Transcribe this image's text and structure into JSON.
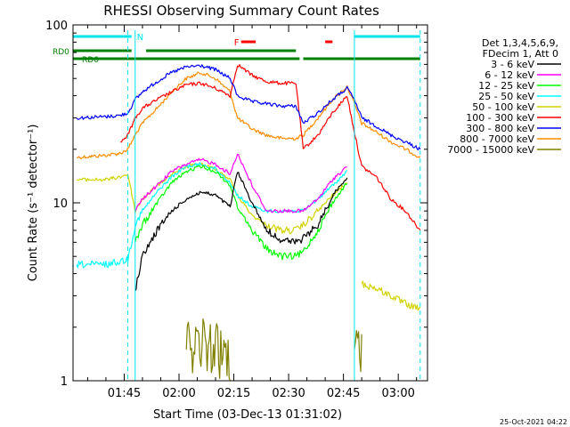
{
  "chart_data": {
    "type": "line",
    "title": "RHESSI Observing Summary Count Rates",
    "xlabel": "Start Time (03-Dec-13 01:31:02)",
    "ylabel": "Count Rate (s⁻¹ detector⁻¹)",
    "y_scale": "log",
    "ylim": [
      1,
      100
    ],
    "xlim": [
      "01:31",
      "03:08"
    ],
    "x_ticks": [
      "01:45",
      "02:00",
      "02:15",
      "02:30",
      "02:45",
      "03:00"
    ],
    "y_ticks": [
      "1",
      "10",
      "100"
    ],
    "grid": false,
    "legend_position": "top-right",
    "legend_header": [
      "Det 1,3,4,5,6,9,",
      "FDecim 1, Att 0"
    ],
    "timestamp": "25-Oct-2021 04:22",
    "flags": [
      {
        "label": "N",
        "color": "#00e5ee",
        "type": "night",
        "intervals": [
          [
            "01:31",
            "01:47"
          ],
          [
            "02:48",
            "03:06"
          ]
        ]
      },
      {
        "label": "F",
        "color": "#ff0000",
        "type": "flare",
        "intervals": [
          [
            "02:17",
            "02:21"
          ],
          [
            "02:40",
            "02:42"
          ]
        ]
      },
      {
        "label": "RD0",
        "color": "#008000",
        "type": "decimation",
        "intervals": [
          [
            "01:31",
            "01:47"
          ],
          [
            "01:51",
            "02:32"
          ]
        ]
      },
      {
        "label": "RD6",
        "color": "#008000",
        "type": "decimation",
        "intervals": [
          [
            "01:31",
            "02:33"
          ],
          [
            "02:34",
            "03:06"
          ]
        ]
      }
    ],
    "night_markers": [
      {
        "time": "01:46",
        "style": "dashed"
      },
      {
        "time": "01:48",
        "style": "solid"
      },
      {
        "time": "02:48",
        "style": "solid"
      },
      {
        "time": "03:06",
        "style": "dashed"
      }
    ],
    "x_times": [
      "01:32",
      "01:40",
      "01:44",
      "01:46",
      "01:48",
      "01:50",
      "01:54",
      "01:58",
      "02:02",
      "02:06",
      "02:10",
      "02:14",
      "02:16",
      "02:20",
      "02:24",
      "02:28",
      "02:32",
      "02:34",
      "02:38",
      "02:42",
      "02:46",
      "02:48",
      "02:50",
      "02:54",
      "02:58",
      "03:02",
      "03:06"
    ],
    "series": [
      {
        "name": "3 - 6 keV",
        "color": "#000000",
        "values": [
          null,
          null,
          null,
          null,
          3.2,
          5.0,
          7.0,
          9.0,
          10.5,
          11.5,
          11.0,
          9.5,
          15.0,
          10.0,
          7.0,
          6.2,
          6.0,
          6.3,
          7.5,
          11.0,
          14.0,
          null,
          null,
          null,
          null,
          null,
          null
        ]
      },
      {
        "name": "6 - 12 keV",
        "color": "#ff00ff",
        "values": [
          null,
          null,
          null,
          null,
          9.0,
          10.5,
          12.5,
          15.0,
          16.5,
          17.5,
          16.5,
          14.5,
          19.0,
          12.5,
          9.0,
          9.0,
          9.0,
          9.0,
          10.5,
          13.5,
          16.0,
          null,
          null,
          null,
          null,
          null,
          null
        ]
      },
      {
        "name": "12 - 25 keV",
        "color": "#00ff00",
        "values": [
          null,
          null,
          null,
          null,
          6.0,
          7.5,
          10.0,
          13.0,
          15.0,
          16.0,
          15.0,
          12.5,
          9.5,
          7.0,
          5.5,
          5.0,
          5.0,
          5.3,
          7.0,
          10.0,
          13.0,
          null,
          null,
          null,
          null,
          null,
          null
        ]
      },
      {
        "name": "25 - 50 keV",
        "color": "#00ffff",
        "values": [
          4.5,
          4.5,
          4.7,
          4.8,
          7.5,
          9.0,
          11.5,
          14.0,
          16.0,
          16.5,
          15.5,
          13.0,
          11.0,
          9.5,
          9.0,
          9.0,
          9.0,
          9.0,
          10.5,
          12.5,
          15.0,
          null,
          null,
          null,
          null,
          null,
          null
        ]
      },
      {
        "name": "50 - 100 keV",
        "color": "#d2d200",
        "values": [
          13.5,
          13.5,
          14.0,
          14.5,
          9.0,
          10.5,
          12.5,
          14.5,
          16.0,
          16.5,
          15.5,
          13.5,
          11.0,
          8.5,
          7.5,
          7.0,
          7.0,
          7.5,
          9.0,
          11.0,
          13.0,
          null,
          3.5,
          3.3,
          3.0,
          2.7,
          2.5
        ]
      },
      {
        "name": "100 - 300 keV",
        "color": "#ff0000",
        "values": [
          null,
          null,
          22.0,
          24.0,
          30.0,
          34.0,
          38.0,
          42.0,
          46.0,
          47.0,
          44.0,
          40.0,
          60.0,
          52.0,
          48.0,
          47.0,
          47.0,
          20.0,
          24.0,
          32.0,
          40.0,
          25.0,
          16.0,
          14.0,
          10.5,
          9.0,
          7.0
        ]
      },
      {
        "name": "300 - 800 keV",
        "color": "#0000ff",
        "values": [
          30.0,
          30.5,
          31.0,
          32.0,
          38.0,
          42.0,
          48.0,
          54.0,
          58.0,
          59.0,
          56.0,
          50.0,
          40.0,
          37.0,
          36.0,
          35.0,
          35.0,
          28.0,
          32.0,
          38.0,
          44.0,
          38.0,
          30.0,
          27.0,
          24.0,
          22.0,
          20.0
        ]
      },
      {
        "name": "800 - 7000 keV",
        "color": "#ff8c00",
        "values": [
          18.0,
          18.5,
          19.0,
          20.0,
          24.0,
          28.0,
          34.0,
          42.0,
          50.0,
          54.0,
          50.0,
          42.0,
          30.0,
          26.0,
          24.0,
          23.0,
          23.0,
          24.0,
          30.0,
          38.0,
          45.0,
          36.0,
          28.0,
          25.0,
          22.0,
          20.0,
          18.0
        ]
      },
      {
        "name": "7000 - 15000 keV",
        "color": "#808000",
        "values": [
          null,
          null,
          null,
          null,
          null,
          null,
          null,
          null,
          1.5,
          1.6,
          1.5,
          1.3,
          null,
          null,
          null,
          null,
          null,
          null,
          null,
          null,
          null,
          1.5,
          1.4,
          null,
          null,
          null,
          null
        ]
      }
    ]
  }
}
